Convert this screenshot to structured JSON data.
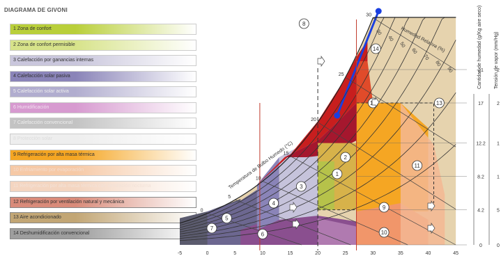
{
  "title": "DIAGRAMA DE GIVONI",
  "legend": [
    {
      "label": "1 Zona de confort",
      "color": "#b9cf3a",
      "text_color": "#333"
    },
    {
      "label": "2 Zona de confort permisible",
      "color": "#d7e38a",
      "text_color": "#333"
    },
    {
      "label": "3 Calefacción por ganancias internas",
      "color": "#c9c6dc",
      "text_color": "#333"
    },
    {
      "label": "4 Calefacción solar pasiva",
      "color": "#8a84b8",
      "text_color": "#333"
    },
    {
      "label": "5 Calefacción solar activa",
      "color": "#b1adcf",
      "text_color": "#eee"
    },
    {
      "label": "6 Humidificación",
      "color": "#d79ad0",
      "text_color": "#f3e0f0"
    },
    {
      "label": "7 Calefacción convencional",
      "color": "#c3c3c3",
      "text_color": "#eee"
    },
    {
      "label": "8 Protección solar",
      "color": "#eeeeee",
      "text_color": "#ddd"
    },
    {
      "label": "9 Refrigeración por alta masa térmica",
      "color": "#f5a623",
      "text_color": "#333"
    },
    {
      "label": "10 Enfriamiento por evaporación",
      "color": "#f6c9a6",
      "text_color": "#f3ddd0"
    },
    {
      "label": "11 Refrigeración por alta masa térmica con ventilación nocturna",
      "color": "#f4d5c0",
      "text_color": "#f2e2d8"
    },
    {
      "label": "12 Refrigeración por ventilación natural y mecánica",
      "color": "#d98b7a",
      "text_color": "#333"
    },
    {
      "label": "13 Aire acondicionado",
      "color": "#c2a675",
      "text_color": "#333"
    },
    {
      "label": "14 Deshumidificación convencional",
      "color": "#9e9e9e",
      "text_color": "#333"
    }
  ],
  "chart_data": {
    "type": "psychrometric",
    "title": "DIAGRAMA DE GIVONI",
    "xlabel": "",
    "x_ticks": [
      -5,
      0,
      5,
      10,
      15,
      20,
      25,
      30,
      35,
      40,
      45
    ],
    "xlim": [
      -5,
      47
    ],
    "y_right_label_1": "Cantidad de humedad (g/Kg aire seco)",
    "y_right_label_2": "Tensión de vapor (mm/Hg)",
    "humidity_ticks": [
      0,
      4.2,
      8.2,
      12.2,
      17,
      21
    ],
    "vapor_ticks": [
      "0",
      "5",
      "1",
      "1",
      "2",
      "2"
    ],
    "wet_bulb_label": "Temperatura de Bulbo Humedo (°C)",
    "wet_bulb_ticks": [
      0,
      5,
      10,
      15,
      20,
      25,
      30
    ],
    "rh_label": "Humedad Relativa (%)",
    "rh_ticks": [
      30,
      40,
      50,
      60,
      70,
      80,
      90
    ],
    "zone_numbers": [
      "1",
      "2",
      "3",
      "4",
      "5",
      "6",
      "7",
      "8",
      "9",
      "10",
      "11",
      "12",
      "13",
      "14"
    ],
    "line_series": [
      {
        "color": "#1a3fe0",
        "points": [
          [
            23.5,
            15.5
          ],
          [
            31,
            28
          ]
        ]
      }
    ],
    "vertical_markers": [
      9.5,
      27
    ]
  }
}
